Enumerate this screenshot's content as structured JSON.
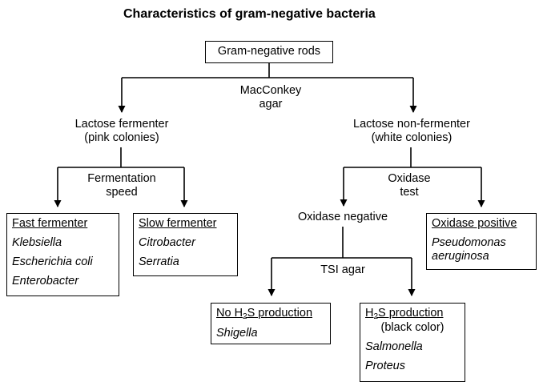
{
  "title": "Characteristics of gram-negative bacteria",
  "root": "Gram-negative rods",
  "step1": {
    "line1": "MacConkey",
    "line2": "agar"
  },
  "left_branch": {
    "line1": "Lactose fermenter",
    "line2": "(pink colonies)"
  },
  "right_branch": {
    "line1": "Lactose non-fermenter",
    "line2": "(white colonies)"
  },
  "step_left": {
    "line1": "Fermentation",
    "line2": "speed"
  },
  "step_right": {
    "line1": "Oxidase",
    "line2": "test"
  },
  "fast": {
    "heading": "Fast fermenter",
    "items": [
      "Klebsiella",
      "Escherichia coli",
      "Enterobacter"
    ]
  },
  "slow": {
    "heading": "Slow fermenter",
    "items": [
      "Citrobacter",
      "Serratia"
    ]
  },
  "oxidase_negative": "Oxidase negative",
  "oxidase_positive": {
    "heading": "Oxidase positive",
    "organism_line1": "Pseudomonas",
    "organism_line2": "aeruginosa"
  },
  "tsi": "TSI agar",
  "no_h2s": {
    "heading_pre": "No H",
    "heading_sub": "2",
    "heading_post": "S production",
    "items": [
      "Shigella"
    ]
  },
  "h2s": {
    "heading_pre": "H",
    "heading_sub": "2",
    "heading_post": "S production",
    "note": "(black color)",
    "items": [
      "Salmonella",
      "Proteus"
    ]
  },
  "colors": {
    "line": "#000000",
    "background": "#ffffff",
    "text": "#000000"
  }
}
